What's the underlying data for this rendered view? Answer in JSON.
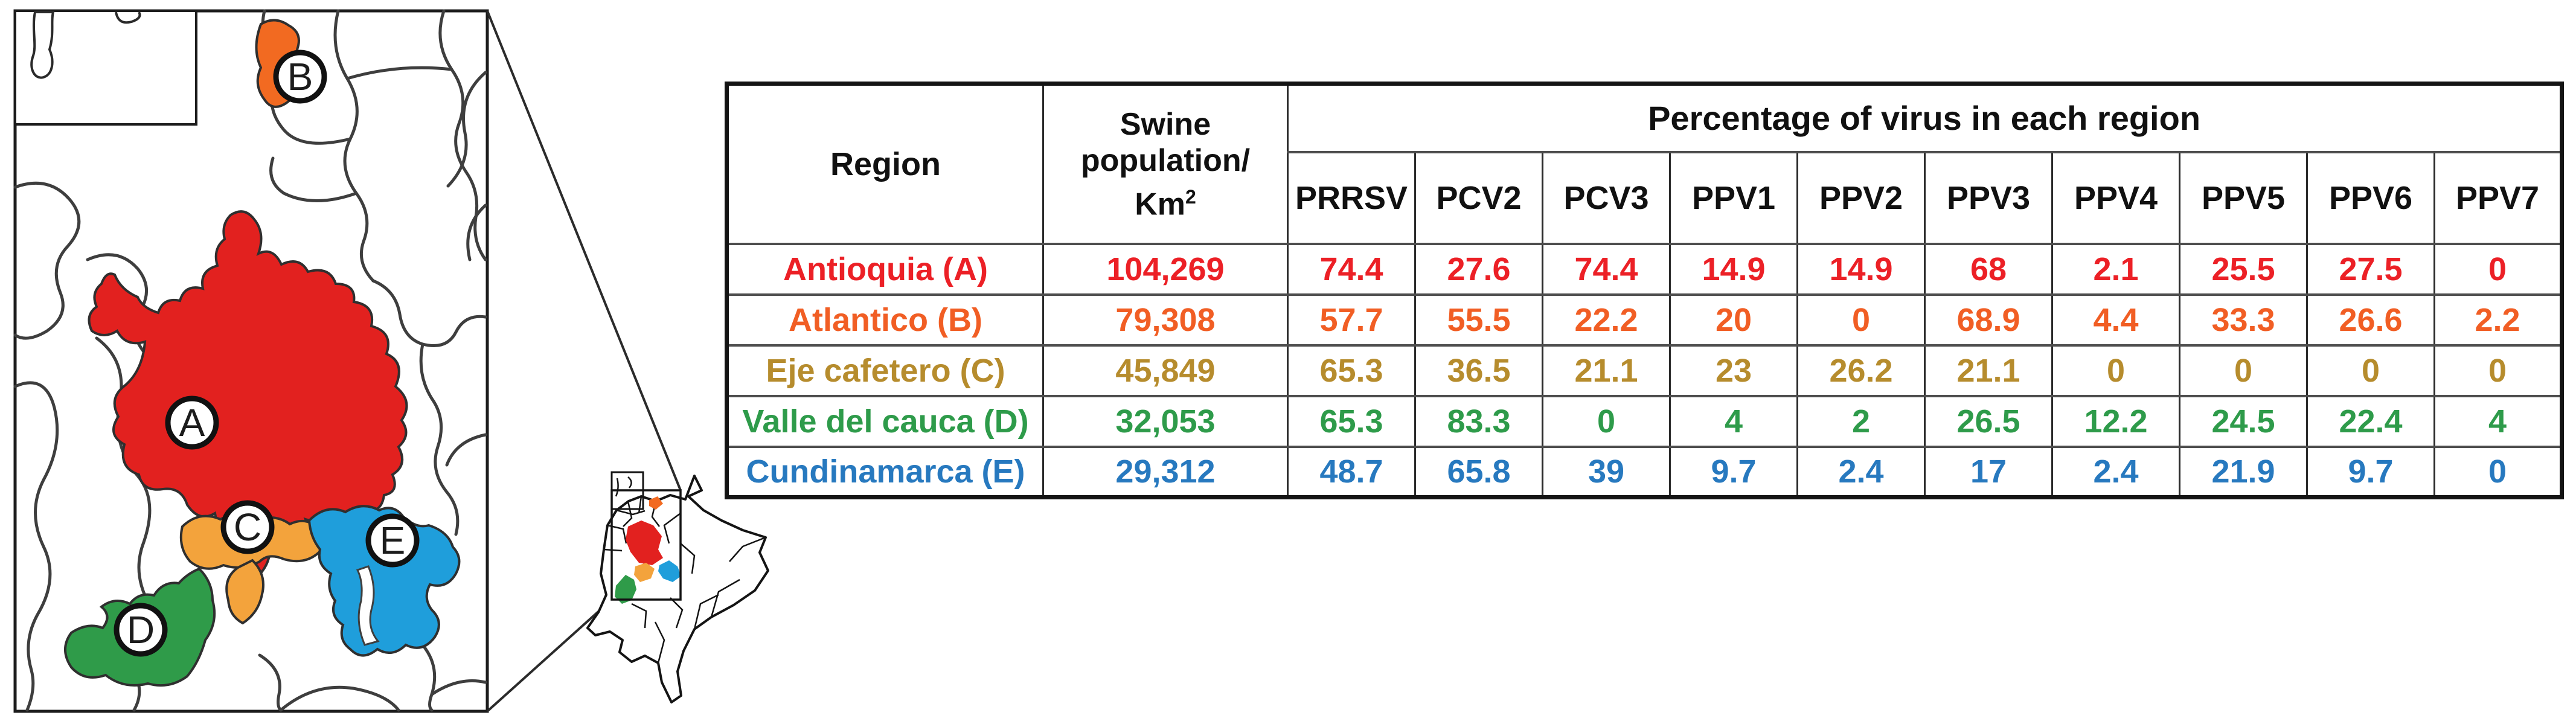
{
  "figure": {
    "description": "Map of Colombian regions with swine population and virus prevalence table"
  },
  "map": {
    "region_labels": [
      {
        "letter": "A",
        "name": "Antioquia",
        "color": "#e2211f"
      },
      {
        "letter": "B",
        "name": "Atlantico",
        "color": "#f26a21"
      },
      {
        "letter": "C",
        "name": "Eje cafetero",
        "color": "#f3a33c"
      },
      {
        "letter": "D",
        "name": "Valle del cauca",
        "color": "#2f9b49"
      },
      {
        "letter": "E",
        "name": "Cundinamarca",
        "color": "#1f9edb"
      }
    ],
    "boundary_color": "#3e3e3e",
    "outline_color": "#1c1c1c"
  },
  "table": {
    "headers": {
      "region": "Region",
      "swine_lines": [
        "Swine",
        "population/",
        "Km"
      ],
      "swine_sup": "2",
      "virus_span": "Percentage of virus in each region",
      "virus_columns": [
        "PRRSV",
        "PCV2",
        "PCV3",
        "PPV1",
        "PPV2",
        "PPV3",
        "PPV4",
        "PPV5",
        "PPV6",
        "PPV7"
      ]
    },
    "rows": [
      {
        "region": "Antioquia (A)",
        "swine": "104,269",
        "color": "#ec2026",
        "values": [
          "74.4",
          "27.6",
          "74.4",
          "14.9",
          "14.9",
          "68",
          "2.1",
          "25.5",
          "27.5",
          "0"
        ]
      },
      {
        "region": "Atlantico (B)",
        "swine": "79,308",
        "color": "#f15e24",
        "values": [
          "57.7",
          "55.5",
          "22.2",
          "20",
          "0",
          "68.9",
          "4.4",
          "33.3",
          "26.6",
          "2.2"
        ]
      },
      {
        "region": "Eje cafetero (C)",
        "swine": "45,849",
        "color": "#b68c2d",
        "values": [
          "65.3",
          "36.5",
          "21.1",
          "23",
          "26.2",
          "21.1",
          "0",
          "0",
          "0",
          "0"
        ]
      },
      {
        "region": "Valle del cauca (D)",
        "swine": "32,053",
        "color": "#2e9b4a",
        "values": [
          "65.3",
          "83.3",
          "0",
          "4",
          "2",
          "26.5",
          "12.2",
          "24.5",
          "22.4",
          "4"
        ]
      },
      {
        "region": "Cundinamarca (E)",
        "swine": "29,312",
        "color": "#2779bf",
        "values": [
          "48.7",
          "65.8",
          "39",
          "9.7",
          "2.4",
          "17",
          "2.4",
          "21.9",
          "9.7",
          "0"
        ]
      }
    ]
  },
  "chart_data": {
    "type": "table",
    "title": "Percentage of virus in each region",
    "columns": [
      "Region",
      "Swine population/Km2",
      "PRRSV",
      "PCV2",
      "PCV3",
      "PPV1",
      "PPV2",
      "PPV3",
      "PPV4",
      "PPV5",
      "PPV6",
      "PPV7"
    ],
    "rows": [
      [
        "Antioquia (A)",
        104269,
        74.4,
        27.6,
        74.4,
        14.9,
        14.9,
        68,
        2.1,
        25.5,
        27.5,
        0
      ],
      [
        "Atlantico (B)",
        79308,
        57.7,
        55.5,
        22.2,
        20,
        0,
        68.9,
        4.4,
        33.3,
        26.6,
        2.2
      ],
      [
        "Eje cafetero (C)",
        45849,
        65.3,
        36.5,
        21.1,
        23,
        26.2,
        21.1,
        0,
        0,
        0,
        0
      ],
      [
        "Valle del cauca (D)",
        32053,
        65.3,
        83.3,
        0,
        4,
        2,
        26.5,
        12.2,
        24.5,
        22.4,
        4
      ],
      [
        "Cundinamarca (E)",
        29312,
        48.7,
        65.8,
        39,
        9.7,
        2.4,
        17,
        2.4,
        21.9,
        9.7,
        0
      ]
    ]
  }
}
